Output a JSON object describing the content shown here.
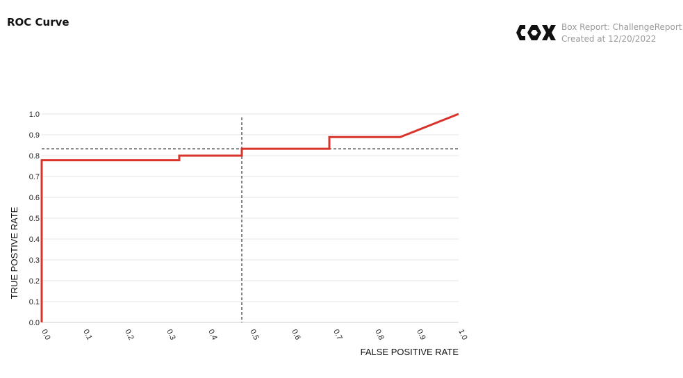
{
  "page": {
    "title": "ROC Curve"
  },
  "report": {
    "logo_icon": "cox-logo-icon",
    "label": "Box Report: ChallengeReport",
    "created": "Created at 12/20/2022",
    "meta_color": "#9a9a9a"
  },
  "chart_data": {
    "type": "line",
    "xlabel": "FALSE POSITIVE RATE",
    "ylabel": "TRUE POSTIVE RATE",
    "xlim": [
      0,
      1
    ],
    "ylim": [
      0,
      1
    ],
    "x_ticks": [
      "0.0",
      "0.1",
      "0.2",
      "0.3",
      "0.4",
      "0.5",
      "0.6",
      "0.7",
      "0.8",
      "0.9",
      "1.0"
    ],
    "y_ticks": [
      "0.0",
      "0.1",
      "0.2",
      "0.3",
      "0.4",
      "0.5",
      "0.6",
      "0.7",
      "0.8",
      "0.9",
      "1.0"
    ],
    "grid": "horizontal",
    "legend": "none",
    "series": [
      {
        "color": "#d9342b",
        "x": [
          0.0,
          0.0,
          0.33,
          0.33,
          0.48,
          0.48,
          0.69,
          0.69,
          0.86,
          1.0
        ],
        "y": [
          0.0,
          0.778,
          0.778,
          0.8,
          0.8,
          0.833,
          0.833,
          0.889,
          0.889,
          1.0
        ]
      }
    ],
    "reference_lines": {
      "vertical_x": 0.48,
      "horizontal_y": 0.833,
      "style": "dashed",
      "color": "#333333"
    }
  }
}
